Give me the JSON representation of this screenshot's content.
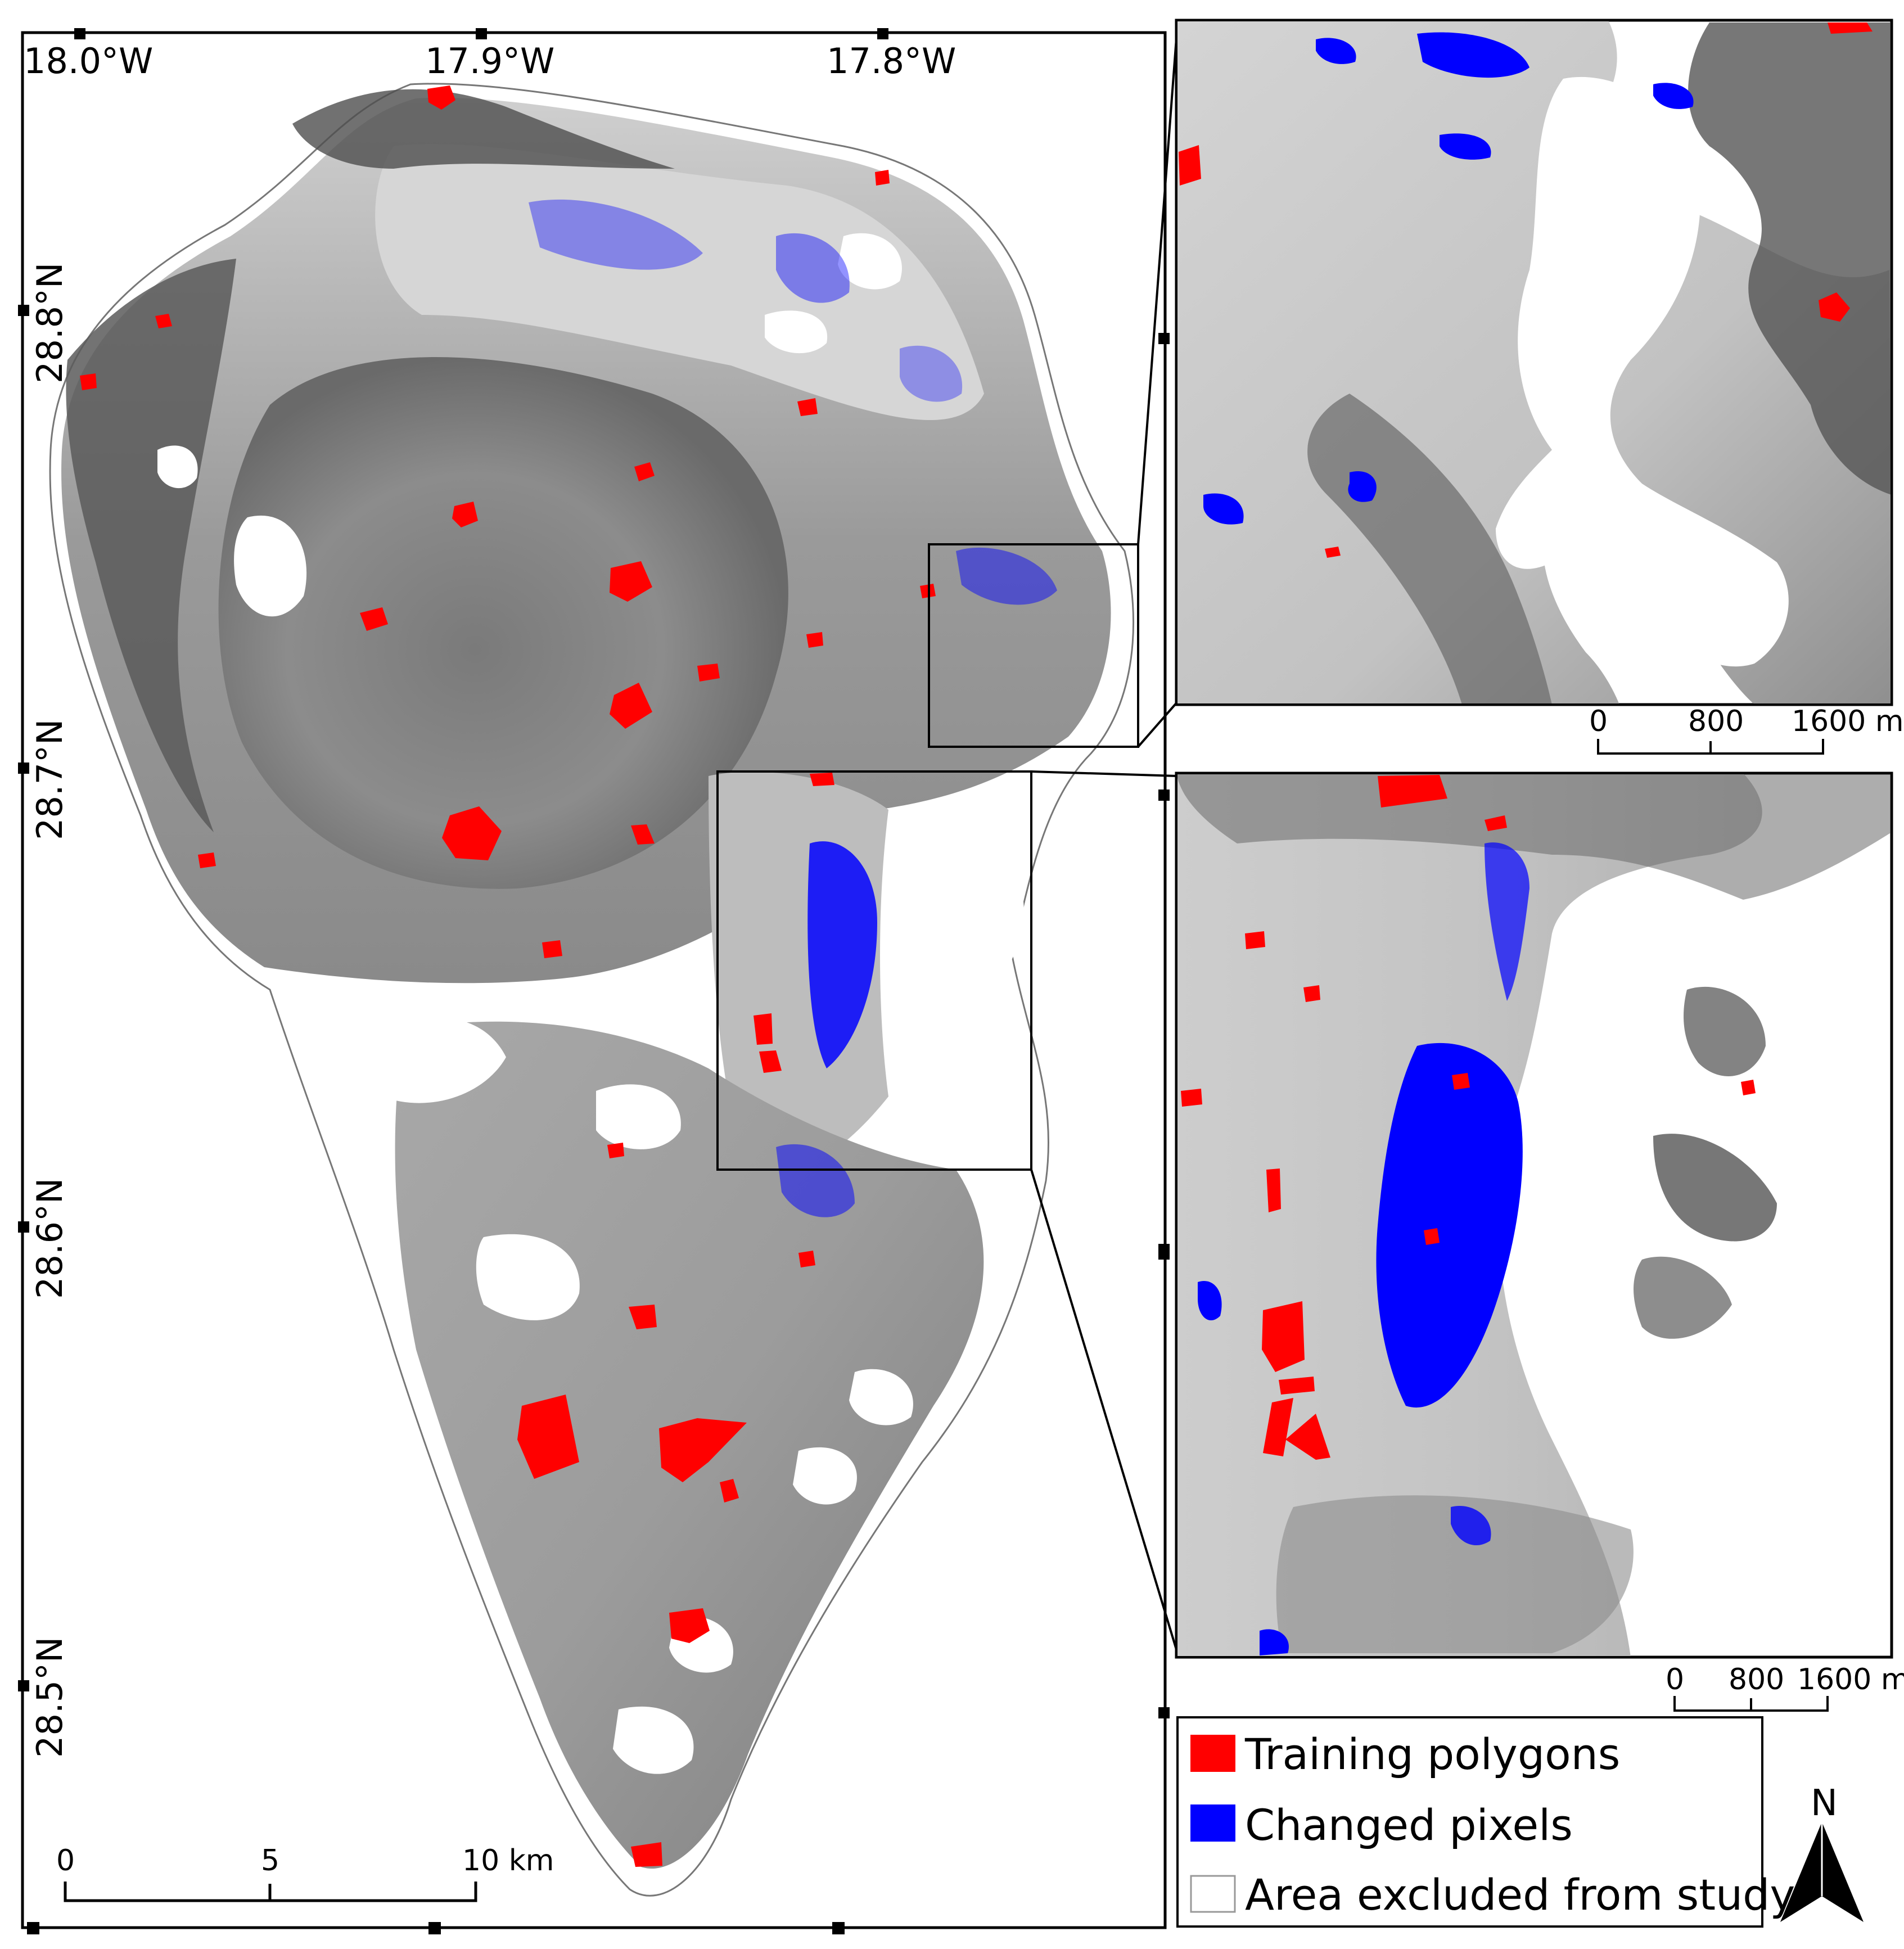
{
  "main_map": {
    "lon_labels": [
      "18.0°W",
      "17.9°W",
      "17.8°W"
    ],
    "lat_labels": [
      "28.8°N",
      "28.7°N",
      "28.6°N",
      "28.5°N"
    ],
    "scale_bar": {
      "labels": [
        "0",
        "5",
        "10 km"
      ]
    }
  },
  "inset_top": {
    "scale_bar": {
      "labels": [
        "0",
        "800",
        "1600 m"
      ]
    }
  },
  "inset_bottom": {
    "scale_bar": {
      "labels": [
        "0",
        "800",
        "1600 m"
      ]
    }
  },
  "legend": {
    "items": [
      {
        "label": "Training polygons",
        "color": "#ff0000"
      },
      {
        "label": "Changed pixels",
        "color": "#0000ff"
      },
      {
        "label": "Area excluded from study",
        "color": "#ffffff"
      }
    ]
  },
  "north_arrow": {
    "label": "N"
  },
  "colors": {
    "training": "#ff0000",
    "changed": "#0000ff",
    "terrain_dark": "#555555",
    "terrain_mid": "#8e8e8e",
    "terrain_light": "#c9c9c9"
  }
}
